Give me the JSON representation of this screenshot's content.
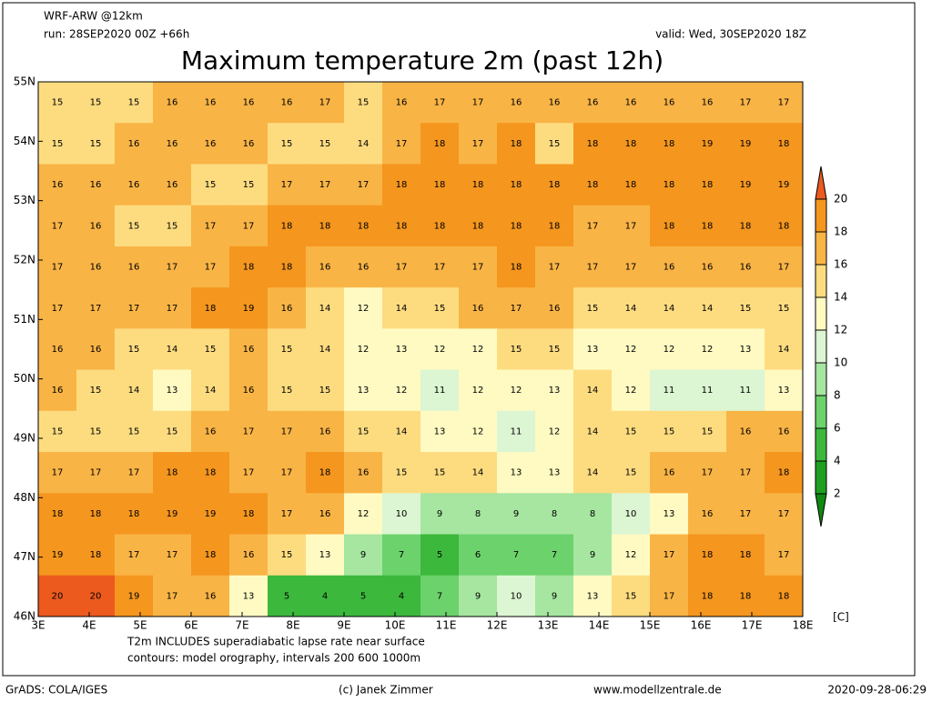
{
  "header": {
    "model": "WRF-ARW @12km",
    "run": "run: 28SEP2020 00Z +66h",
    "valid": "valid: Wed, 30SEP2020 18Z",
    "title": "Maximum temperature 2m (past 12h)"
  },
  "axes": {
    "lat_labels": [
      "55N",
      "54N",
      "53N",
      "52N",
      "51N",
      "50N",
      "49N",
      "48N",
      "47N",
      "46N"
    ],
    "lon_labels": [
      "3E",
      "4E",
      "5E",
      "6E",
      "7E",
      "8E",
      "9E",
      "10E",
      "11E",
      "12E",
      "13E",
      "14E",
      "15E",
      "16E",
      "17E",
      "18E"
    ]
  },
  "colorbar": {
    "levels": [
      2,
      4,
      6,
      8,
      10,
      12,
      14,
      16,
      18,
      20
    ],
    "colors": [
      "#0f8a0f",
      "#1ea01e",
      "#3cb83c",
      "#6cd26c",
      "#a6e6a0",
      "#dcf5d2",
      "#fefac2",
      "#fddc80",
      "#f9b446",
      "#f5961e",
      "#ec5a1e"
    ],
    "unit": "[C]"
  },
  "grid": {
    "values": [
      [
        15,
        15,
        15,
        16,
        16,
        16,
        16,
        17,
        15,
        16,
        17,
        17,
        16,
        16,
        16,
        16,
        16,
        16,
        17,
        17
      ],
      [
        15,
        15,
        16,
        16,
        16,
        16,
        15,
        15,
        14,
        17,
        18,
        17,
        18,
        15,
        18,
        18,
        18,
        19,
        19,
        18
      ],
      [
        16,
        16,
        16,
        16,
        15,
        15,
        17,
        17,
        17,
        18,
        18,
        18,
        18,
        18,
        18,
        18,
        18,
        18,
        19,
        19
      ],
      [
        17,
        16,
        15,
        15,
        17,
        17,
        18,
        18,
        18,
        18,
        18,
        18,
        18,
        18,
        17,
        17,
        18,
        18,
        18,
        18
      ],
      [
        17,
        16,
        16,
        17,
        17,
        18,
        18,
        16,
        16,
        17,
        17,
        17,
        18,
        17,
        17,
        17,
        16,
        16,
        16,
        17
      ],
      [
        17,
        17,
        17,
        17,
        18,
        19,
        16,
        14,
        12,
        14,
        15,
        16,
        17,
        16,
        15,
        14,
        14,
        14,
        15,
        15
      ],
      [
        16,
        16,
        15,
        14,
        15,
        16,
        15,
        14,
        12,
        13,
        12,
        12,
        15,
        15,
        13,
        12,
        12,
        12,
        13,
        14
      ],
      [
        16,
        15,
        14,
        13,
        14,
        16,
        15,
        15,
        13,
        12,
        11,
        12,
        12,
        13,
        14,
        12,
        11,
        11,
        11,
        13
      ],
      [
        15,
        15,
        15,
        15,
        16,
        17,
        17,
        16,
        15,
        14,
        13,
        12,
        11,
        12,
        14,
        15,
        15,
        15,
        16,
        16
      ],
      [
        17,
        17,
        17,
        18,
        18,
        17,
        17,
        18,
        16,
        15,
        15,
        14,
        13,
        13,
        14,
        15,
        16,
        17,
        17,
        18
      ],
      [
        18,
        18,
        18,
        19,
        19,
        18,
        17,
        16,
        12,
        10,
        9,
        8,
        9,
        8,
        8,
        10,
        13,
        16,
        17,
        17
      ],
      [
        19,
        18,
        17,
        17,
        18,
        16,
        15,
        13,
        9,
        7,
        5,
        6,
        7,
        7,
        9,
        12,
        17,
        18,
        18,
        17
      ],
      [
        20,
        20,
        19,
        17,
        16,
        13,
        5,
        4,
        5,
        4,
        7,
        9,
        10,
        9,
        13,
        15,
        17,
        18,
        18,
        18
      ]
    ]
  },
  "footer": {
    "note1": "T2m INCLUDES superadiabatic lapse rate near surface",
    "note2": "contours: model orography, intervals 200 600 1000m",
    "software": "GrADS: COLA/IGES",
    "author": "(c) Janek Zimmer",
    "website": "www.modellzentrale.de",
    "timestamp": "2020-09-28-06:29"
  }
}
